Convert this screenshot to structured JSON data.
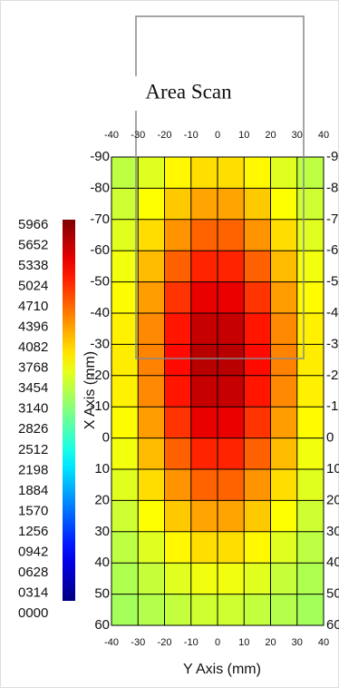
{
  "chart_data": {
    "type": "heatmap",
    "title": "Area Scan",
    "xlabel": "Y Axis (mm)",
    "ylabel": "X Axis (mm)",
    "x": [
      -35,
      -25,
      -15,
      -5,
      5,
      15,
      25,
      35
    ],
    "y": [
      -85,
      -75,
      -65,
      -55,
      -45,
      -35,
      -25,
      -15,
      -5,
      5,
      15,
      25,
      35,
      45,
      55
    ],
    "values": [
      [
        3338,
        3543,
        3770,
        3924,
        3924,
        3770,
        3543,
        3338
      ],
      [
        3436,
        3724,
        4044,
        4261,
        4261,
        4044,
        3724,
        3436
      ],
      [
        3545,
        3927,
        4352,
        4639,
        4639,
        4352,
        3927,
        3545
      ],
      [
        3653,
        4128,
        4657,
        5014,
        5014,
        4657,
        4128,
        3653
      ],
      [
        3747,
        4301,
        4919,
        5336,
        5336,
        4919,
        4301,
        3747
      ],
      [
        3810,
        4420,
        5098,
        5556,
        5556,
        5098,
        4420,
        3810
      ],
      [
        3833,
        4462,
        5162,
        5635,
        5635,
        5162,
        4462,
        3833
      ],
      [
        3810,
        4420,
        5098,
        5556,
        5556,
        5098,
        4420,
        3810
      ],
      [
        3747,
        4301,
        4919,
        5336,
        5336,
        4919,
        4301,
        3747
      ],
      [
        3653,
        4128,
        4657,
        5014,
        5014,
        4657,
        4128,
        3653
      ],
      [
        3545,
        3927,
        4352,
        4639,
        4639,
        4352,
        3927,
        3545
      ],
      [
        3436,
        3724,
        4044,
        4261,
        4261,
        4044,
        3724,
        3436
      ],
      [
        3338,
        3543,
        3770,
        3924,
        3924,
        3770,
        3543,
        3338
      ],
      [
        3258,
        3394,
        3545,
        3648,
        3648,
        3545,
        3394,
        3258
      ],
      [
        3199,
        3284,
        3378,
        3442,
        3442,
        3378,
        3284,
        3199
      ]
    ],
    "xlim": [
      -40,
      40
    ],
    "xticks": [
      -40,
      -30,
      -20,
      -10,
      0,
      10,
      20,
      30,
      40
    ],
    "ylim": [
      -90,
      60
    ],
    "yticks": [
      -90,
      -80,
      -70,
      -60,
      -50,
      -40,
      -30,
      -20,
      -10,
      0,
      10,
      20,
      30,
      40,
      50,
      60
    ],
    "y_inverted": true,
    "grid": true,
    "colormap": "jet",
    "colorbar": {
      "lim": [
        0,
        5966
      ],
      "ticks": [
        5966,
        5652,
        5338,
        5024,
        4710,
        4396,
        4082,
        3768,
        3454,
        3140,
        2826,
        2512,
        2198,
        1884,
        1570,
        1256,
        {
          "value": 942,
          "label": "0942"
        },
        {
          "value": 628,
          "label": "0628"
        },
        {
          "value": 314,
          "label": "0314"
        },
        {
          "value": 0,
          "label": "0000"
        }
      ]
    }
  }
}
